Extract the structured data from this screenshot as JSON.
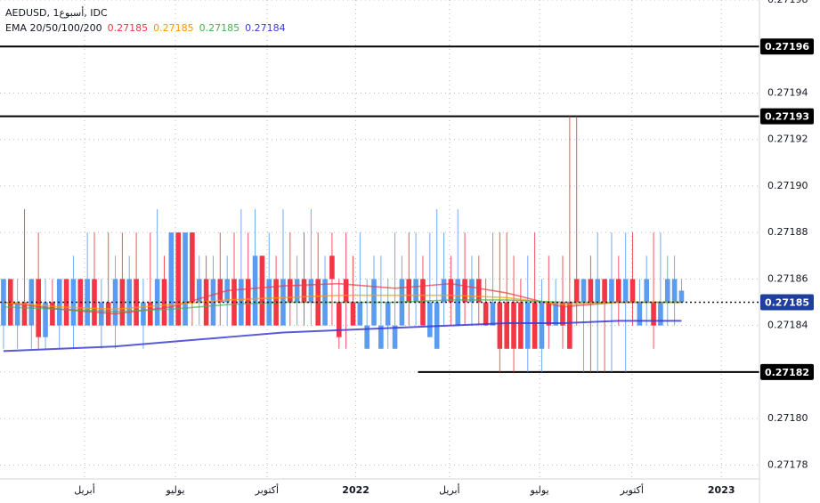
{
  "chart_data": {
    "type": "candlestick",
    "symbol": "AEDUSD, 1أسبوع, IDC",
    "up_color": "#5b9cf0",
    "down_color": "#f23645",
    "categories": [
      null,
      null,
      null,
      null,
      null,
      null,
      null,
      null,
      null,
      null,
      null,
      null,
      null,
      null,
      null,
      null,
      null,
      null,
      null,
      null,
      null,
      null,
      null,
      null,
      null,
      null,
      null,
      null,
      null,
      null,
      null,
      null,
      null,
      null,
      null,
      null,
      null,
      null,
      null,
      null,
      null,
      null,
      null,
      null,
      null,
      null,
      null,
      null,
      null,
      null,
      null,
      null,
      null,
      null,
      null,
      null,
      null,
      null,
      null,
      null,
      null,
      null,
      null,
      null,
      null,
      null,
      null,
      null,
      null,
      null,
      null,
      null,
      null,
      null,
      null,
      null,
      null,
      null,
      null,
      null,
      null,
      null,
      null,
      null,
      null,
      null,
      null,
      null,
      null,
      null,
      null,
      null,
      null,
      null,
      null,
      null,
      null,
      null
    ],
    "candles": [
      [
        0.27184,
        0.27186,
        0.27183,
        0.27186
      ],
      [
        0.27186,
        0.27186,
        0.27184,
        0.27184
      ],
      [
        0.27184,
        0.27186,
        0.27183,
        0.27185
      ],
      [
        0.27185,
        0.27189,
        0.27184,
        0.27184
      ],
      [
        0.27184,
        0.27186,
        0.27183,
        0.27186
      ],
      [
        0.27186,
        0.27188,
        0.27183,
        0.271835
      ],
      [
        0.271835,
        0.27186,
        0.27183,
        0.27185
      ],
      [
        0.27185,
        0.27186,
        0.27184,
        0.27184
      ],
      [
        0.27184,
        0.27186,
        0.27183,
        0.27186
      ],
      [
        0.27186,
        0.27186,
        0.27184,
        0.27184
      ],
      [
        0.27184,
        0.27187,
        0.27183,
        0.27186
      ],
      [
        0.27186,
        0.27186,
        0.27184,
        0.27184
      ],
      [
        0.27184,
        0.27188,
        0.27184,
        0.27186
      ],
      [
        0.27186,
        0.27188,
        0.27184,
        0.27184
      ],
      [
        0.27184,
        0.27186,
        0.27183,
        0.27185
      ],
      [
        0.27185,
        0.27188,
        0.27184,
        0.27184
      ],
      [
        0.27184,
        0.27187,
        0.27183,
        0.27186
      ],
      [
        0.27186,
        0.27188,
        0.27184,
        0.27184
      ],
      [
        0.27184,
        0.27187,
        0.27184,
        0.27186
      ],
      [
        0.27186,
        0.27188,
        0.27184,
        0.27184
      ],
      [
        0.27184,
        0.27186,
        0.27183,
        0.27185
      ],
      [
        0.27185,
        0.27188,
        0.27184,
        0.27184
      ],
      [
        0.27184,
        0.27189,
        0.27184,
        0.27186
      ],
      [
        0.27186,
        0.27187,
        0.27184,
        0.27184
      ],
      [
        0.27184,
        0.27188,
        0.27184,
        0.27188
      ],
      [
        0.27188,
        0.27188,
        0.27184,
        0.27184
      ],
      [
        0.27184,
        0.27188,
        0.27184,
        0.27188
      ],
      [
        0.27188,
        0.27188,
        0.27184,
        0.27185
      ],
      [
        0.27185,
        0.27187,
        0.27184,
        0.27186
      ],
      [
        0.27186,
        0.27187,
        0.27184,
        0.27184
      ],
      [
        0.27184,
        0.27187,
        0.27184,
        0.27186
      ],
      [
        0.27186,
        0.27188,
        0.27184,
        0.27185
      ],
      [
        0.27185,
        0.27187,
        0.27184,
        0.27186
      ],
      [
        0.27186,
        0.27188,
        0.27184,
        0.27184
      ],
      [
        0.27184,
        0.27189,
        0.27184,
        0.27186
      ],
      [
        0.27186,
        0.27188,
        0.27184,
        0.27184
      ],
      [
        0.27184,
        0.27189,
        0.27184,
        0.27187
      ],
      [
        0.27187,
        0.27187,
        0.27184,
        0.27184
      ],
      [
        0.27184,
        0.27188,
        0.27184,
        0.27186
      ],
      [
        0.27186,
        0.27187,
        0.27184,
        0.27184
      ],
      [
        0.27184,
        0.27189,
        0.27184,
        0.27186
      ],
      [
        0.27186,
        0.27188,
        0.27184,
        0.27185
      ],
      [
        0.27185,
        0.27187,
        0.27184,
        0.27186
      ],
      [
        0.27186,
        0.27188,
        0.27184,
        0.27185
      ],
      [
        0.27185,
        0.27189,
        0.27184,
        0.27186
      ],
      [
        0.27186,
        0.27188,
        0.27184,
        0.27184
      ],
      [
        0.27184,
        0.27187,
        0.27184,
        0.27186
      ],
      [
        0.27187,
        0.27188,
        0.27184,
        0.27186
      ],
      [
        0.27185,
        0.27186,
        0.27183,
        0.271835
      ],
      [
        0.27186,
        0.27188,
        0.27183,
        0.27185
      ],
      [
        0.27185,
        0.27187,
        0.27184,
        0.27184
      ],
      [
        0.27184,
        0.27188,
        0.27184,
        0.27185
      ],
      [
        0.27183,
        0.27186,
        0.27183,
        0.27184
      ],
      [
        0.27184,
        0.27187,
        0.27184,
        0.27186
      ],
      [
        0.27183,
        0.27187,
        0.27183,
        0.27184
      ],
      [
        0.27184,
        0.27186,
        0.27183,
        0.27185
      ],
      [
        0.27183,
        0.27188,
        0.27183,
        0.27184
      ],
      [
        0.27184,
        0.27187,
        0.27184,
        0.27186
      ],
      [
        0.27186,
        0.27188,
        0.27184,
        0.27185
      ],
      [
        0.27185,
        0.27188,
        0.27184,
        0.27186
      ],
      [
        0.27186,
        0.27187,
        0.27184,
        0.27184
      ],
      [
        0.271835,
        0.27188,
        0.271835,
        0.27185
      ],
      [
        0.27183,
        0.27189,
        0.27183,
        0.27185
      ],
      [
        0.27185,
        0.27188,
        0.27184,
        0.27186
      ],
      [
        0.27186,
        0.27187,
        0.27184,
        0.27185
      ],
      [
        0.27184,
        0.27189,
        0.27184,
        0.27186
      ],
      [
        0.27186,
        0.27188,
        0.27184,
        0.27185
      ],
      [
        0.27185,
        0.27187,
        0.27184,
        0.27186
      ],
      [
        0.27186,
        0.27187,
        0.27184,
        0.27185
      ],
      [
        0.27185,
        0.27186,
        0.27184,
        0.27184
      ],
      [
        0.27184,
        0.27188,
        0.27184,
        0.27185
      ],
      [
        0.27185,
        0.27188,
        0.27182,
        0.27183
      ],
      [
        0.27185,
        0.27188,
        0.27183,
        0.27183
      ],
      [
        0.27185,
        0.27187,
        0.27182,
        0.27183
      ],
      [
        0.27185,
        0.27186,
        0.27183,
        0.27183
      ],
      [
        0.27183,
        0.27187,
        0.27182,
        0.27185
      ],
      [
        0.27185,
        0.27188,
        0.27183,
        0.27183
      ],
      [
        0.27183,
        0.27186,
        0.27182,
        0.27185
      ],
      [
        0.27185,
        0.27187,
        0.27183,
        0.27184
      ],
      [
        0.27184,
        0.27186,
        0.27184,
        0.27185
      ],
      [
        0.27185,
        0.27187,
        0.27183,
        0.27184
      ],
      [
        0.27185,
        0.27193,
        0.27183,
        0.27183
      ],
      [
        0.27186,
        0.27193,
        0.27184,
        0.27185
      ],
      [
        0.27185,
        0.27186,
        0.27182,
        0.27186
      ],
      [
        0.27186,
        0.27187,
        0.27182,
        0.27185
      ],
      [
        0.27185,
        0.27188,
        0.27182,
        0.27186
      ],
      [
        0.27186,
        0.27186,
        0.27182,
        0.27185
      ],
      [
        0.27185,
        0.27188,
        0.27182,
        0.27186
      ],
      [
        0.27186,
        0.27187,
        0.27184,
        0.27185
      ],
      [
        0.27185,
        0.27188,
        0.27182,
        0.27186
      ],
      [
        0.27186,
        0.27188,
        0.27184,
        0.27185
      ],
      [
        0.27184,
        0.27186,
        0.27184,
        0.27185
      ],
      [
        0.27185,
        0.27187,
        0.27184,
        0.27186
      ],
      [
        0.27185,
        0.27188,
        0.27183,
        0.27184
      ],
      [
        0.27184,
        0.27188,
        0.27184,
        0.27185
      ],
      [
        0.27185,
        0.27187,
        0.27184,
        0.27186
      ],
      [
        0.27185,
        0.27187,
        0.27184,
        0.27186
      ],
      [
        0.27185,
        0.27186,
        0.27185,
        0.271855
      ]
    ],
    "indicator": {
      "label": "EMA 20/50/100/200",
      "series": [
        {
          "color": "#f23645",
          "last": 0.27185,
          "x": [
            0,
            8,
            16,
            24,
            32,
            40,
            48,
            56,
            64,
            72,
            80,
            88,
            97
          ],
          "values": [
            0.27185,
            0.271847,
            0.271845,
            0.271848,
            0.271855,
            0.271857,
            0.271858,
            0.271856,
            0.271858,
            0.271854,
            0.271848,
            0.27185,
            0.27185
          ]
        },
        {
          "color": "#ff9800",
          "last": 0.27185,
          "x": [
            0,
            8,
            16,
            24,
            32,
            40,
            48,
            56,
            64,
            72,
            80,
            88,
            97
          ],
          "values": [
            0.27185,
            0.271848,
            0.271847,
            0.271849,
            0.271851,
            0.271852,
            0.271853,
            0.271853,
            0.271853,
            0.271852,
            0.271849,
            0.27185,
            0.27185
          ]
        },
        {
          "color": "#4caf50",
          "last": 0.27185,
          "x": [
            0,
            8,
            16,
            24,
            32,
            40,
            48,
            56,
            64,
            72,
            80,
            88,
            97
          ],
          "values": [
            0.271848,
            0.271847,
            0.271846,
            0.271847,
            0.271849,
            0.27185,
            0.27185,
            0.27185,
            0.271851,
            0.271851,
            0.27185,
            0.27185,
            0.27185
          ]
        },
        {
          "color": "#3c3cd2",
          "last": 0.27184,
          "x": [
            0,
            8,
            16,
            24,
            32,
            40,
            48,
            56,
            64,
            72,
            80,
            88,
            97
          ],
          "values": [
            0.271829,
            0.27183,
            0.271831,
            0.271833,
            0.271835,
            0.271837,
            0.271838,
            0.271839,
            0.27184,
            0.271841,
            0.271841,
            0.271842,
            0.271842
          ]
        }
      ]
    },
    "horizontal_lines": [
      {
        "value": 0.27196
      },
      {
        "value": 0.27193
      },
      {
        "value": 0.27182,
        "from": 59.3
      }
    ],
    "last_price": 0.27185,
    "last_price_color": "#1e3f9e",
    "ylim": [
      0.271774,
      0.27198
    ],
    "yticks": [
      {
        "value": 0.27178,
        "label": "0.27178"
      },
      {
        "value": 0.2718,
        "label": "0.27180"
      },
      0.27182,
      0.27184,
      0.27186,
      0.27188,
      {
        "value": 0.2719,
        "label": "0.27190"
      },
      0.27192,
      0.27194,
      0.27196,
      0.27198
    ],
    "xlim": [
      -0.5,
      108.15
    ],
    "xticks": [
      {
        "value": 11.6,
        "label": "أبريل"
      },
      {
        "value": 24.6,
        "label": "يوليو"
      },
      {
        "value": 37.7,
        "label": "أكتوبر"
      },
      {
        "value": 50.4,
        "label": "2022"
      },
      {
        "value": 63.8,
        "label": "أبريل"
      },
      {
        "value": 76.7,
        "label": "يوليو"
      },
      {
        "value": 89.9,
        "label": "أكتوبر"
      },
      {
        "value": 102.7,
        "label": "2023"
      }
    ],
    "grid": true
  }
}
